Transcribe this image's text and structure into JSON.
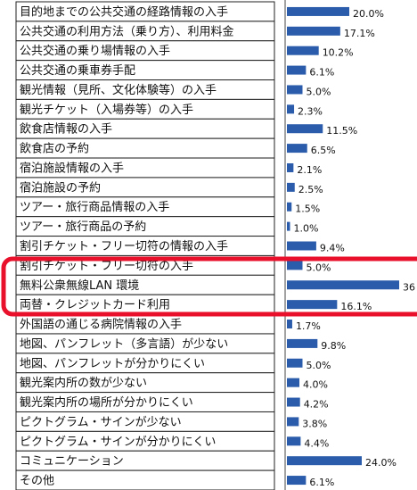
{
  "chart_data": {
    "type": "bar",
    "orientation": "horizontal",
    "color": "#2b5cab",
    "categories": [
      "目的地までの公共交通の経路情報の入手",
      "公共交通の利用方法（乗り方）、利用料金",
      "公共交通の乗り場情報の入手",
      "公共交通の乗車券手配",
      "観光情報（見所、文化体験等）の入手",
      "観光チケット（入場券等）の入手",
      "飲食店情報の入手",
      "飲食店の予約",
      "宿泊施設情報の入手",
      "宿泊施設の予約",
      "ツアー・旅行商品情報の入手",
      "ツアー・旅行商品の予約",
      "割引チケット・フリー切符の情報の入手",
      "割引チケット・フリー切符の入手",
      "無料公衆無線LAN 環境",
      "両替・クレジットカード利用",
      "外国語の通じる病院情報の入手",
      "地図、パンフレット（多言語）が少ない",
      "地図、パンフレットが分かりにくい",
      "観光案内所の数が少ない",
      "観光案内所の場所が分かりにくい",
      "ピクトグラム・サインが少ない",
      "ピクトグラム・サインが分かりにくい",
      "コミュニケーション",
      "その他"
    ],
    "values": [
      20.0,
      17.1,
      10.2,
      6.1,
      5.0,
      2.3,
      11.5,
      6.5,
      2.1,
      2.5,
      1.5,
      1.0,
      9.4,
      5.0,
      36,
      16.1,
      1.7,
      9.8,
      5.0,
      4.0,
      4.2,
      3.8,
      4.4,
      24.0,
      6.1
    ],
    "value_labels": [
      "20.0%",
      "17.1%",
      "10.2%",
      "6.1%",
      "5.0%",
      "2.3%",
      "11.5%",
      "6.5%",
      "2.1%",
      "2.5%",
      "1.5%",
      "1.0%",
      "9.4%",
      "5.0%",
      "36",
      "16.1%",
      "1.7%",
      "9.8%",
      "5.0%",
      "4.0%",
      "4.2%",
      "3.8%",
      "4.4%",
      "24.0%",
      "6.1%"
    ],
    "xlim": [
      0,
      40
    ]
  }
}
